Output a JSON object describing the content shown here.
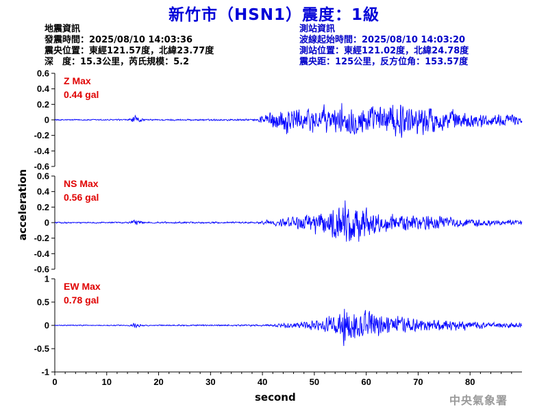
{
  "title": "新竹市（HSN1）震度：1級",
  "quake_info": {
    "heading": "地震資訊",
    "origin_time": "發震時間：2025/08/10 14:03:36",
    "epicenter": "震央位置：東經121.57度，北緯23.77度",
    "depth_magnitude": "深　度：15.3公里，芮氏規模：5.2"
  },
  "station_info": {
    "heading": "測站資訊",
    "wave_start": "波線起始時間：2025/08/10 14:03:20",
    "station_position": "測站位置：東經121.02度，北緯24.78度",
    "distance_azimuth": "震央距：125公里，反方位角：153.57度"
  },
  "watermark": "中央氣象署",
  "chart_data": {
    "type": "line",
    "xlabel": "second",
    "ylabel": "acceleration",
    "xlim": [
      0,
      90
    ],
    "x_ticks": [
      "0",
      "10",
      "20",
      "30",
      "40",
      "50",
      "60",
      "70",
      "80"
    ],
    "line_color": "#0000ff",
    "max_label_color": "#e00000",
    "panels": [
      {
        "name": "Z Max",
        "max_value": "0.44 gal",
        "ylim": [
          -0.6,
          0.6
        ],
        "y_ticks": [
          "0.6",
          "0.4",
          "0.2",
          "0",
          "-0.2",
          "-0.4",
          "-0.6"
        ],
        "envelope": {
          "t": [
            0,
            14,
            15.5,
            16.5,
            17.5,
            39,
            40,
            43,
            45,
            47,
            50,
            53,
            55,
            57,
            59,
            61,
            63,
            66,
            68,
            70,
            72,
            75,
            78,
            82,
            86,
            90
          ],
          "amp": [
            0.015,
            0.015,
            0.09,
            0.05,
            0.015,
            0.02,
            0.14,
            0.2,
            0.3,
            0.22,
            0.25,
            0.24,
            0.27,
            0.3,
            0.34,
            0.3,
            0.3,
            0.44,
            0.28,
            0.28,
            0.3,
            0.22,
            0.18,
            0.14,
            0.12,
            0.1
          ]
        }
      },
      {
        "name": "NS Max",
        "max_value": "0.56 gal",
        "ylim": [
          -0.6,
          0.6
        ],
        "y_ticks": [
          "0.6",
          "0.4",
          "0.2",
          "0",
          "-0.2",
          "-0.4",
          "-0.6"
        ],
        "envelope": {
          "t": [
            0,
            14,
            15.5,
            16.5,
            17.5,
            39,
            41,
            45,
            48,
            51,
            53,
            55,
            56,
            57.5,
            59,
            61,
            63,
            66,
            70,
            74,
            78,
            82,
            86,
            90
          ],
          "amp": [
            0.015,
            0.015,
            0.06,
            0.04,
            0.015,
            0.02,
            0.05,
            0.1,
            0.16,
            0.22,
            0.28,
            0.45,
            0.56,
            0.5,
            0.4,
            0.32,
            0.22,
            0.18,
            0.16,
            0.12,
            0.1,
            0.08,
            0.06,
            0.05
          ]
        }
      },
      {
        "name": "EW Max",
        "max_value": "0.78 gal",
        "ylim": [
          -1,
          1
        ],
        "y_ticks": [
          "1",
          "0.5",
          "0",
          "-0.5",
          "-1"
        ],
        "envelope": {
          "t": [
            0,
            14,
            15.5,
            16.5,
            17.5,
            39,
            42,
            46,
            50,
            53,
            55,
            56,
            57.5,
            59,
            60,
            62,
            65,
            70,
            75,
            80,
            85,
            90
          ],
          "amp": [
            0.02,
            0.02,
            0.09,
            0.05,
            0.02,
            0.03,
            0.05,
            0.1,
            0.2,
            0.3,
            0.45,
            0.78,
            0.5,
            0.45,
            0.6,
            0.4,
            0.3,
            0.22,
            0.18,
            0.14,
            0.1,
            0.09
          ]
        }
      }
    ]
  }
}
